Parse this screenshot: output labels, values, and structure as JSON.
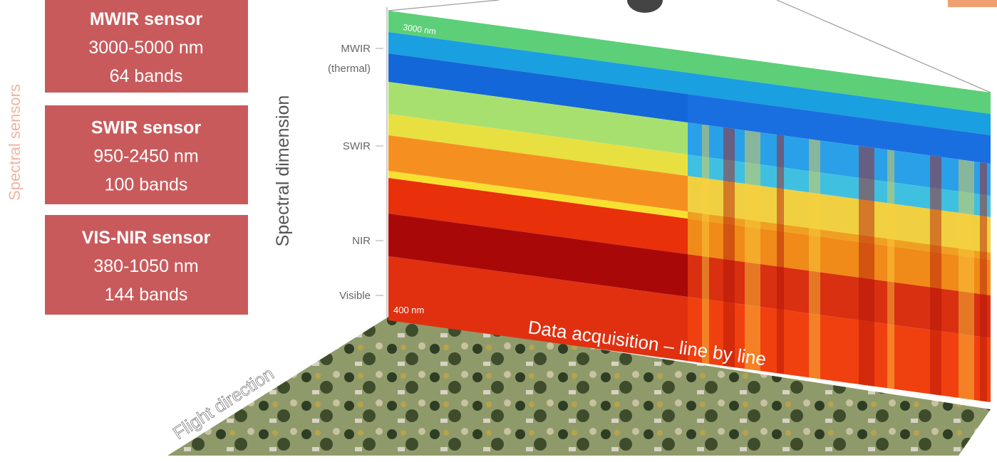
{
  "side_label": "Spectral sensors",
  "sensors": [
    {
      "name": "MWIR sensor",
      "range": "3000-5000 nm",
      "bands": "64 bands"
    },
    {
      "name": "SWIR sensor",
      "range": "950-2450 nm",
      "bands": "100 bands"
    },
    {
      "name": "VIS-NIR sensor",
      "range": "380-1050 nm",
      "bands": "144 bands"
    }
  ],
  "axis": {
    "label": "Spectral dimension",
    "tick_labels": [
      "MWIR",
      "(thermal)",
      "SWIR",
      "NIR",
      "Visible"
    ]
  },
  "panel": {
    "top_label": "3000 nm",
    "bottom_label": "400 nm",
    "acquisition": "Data acquisition – line by line"
  },
  "ground": {
    "label": "Flight direction"
  }
}
